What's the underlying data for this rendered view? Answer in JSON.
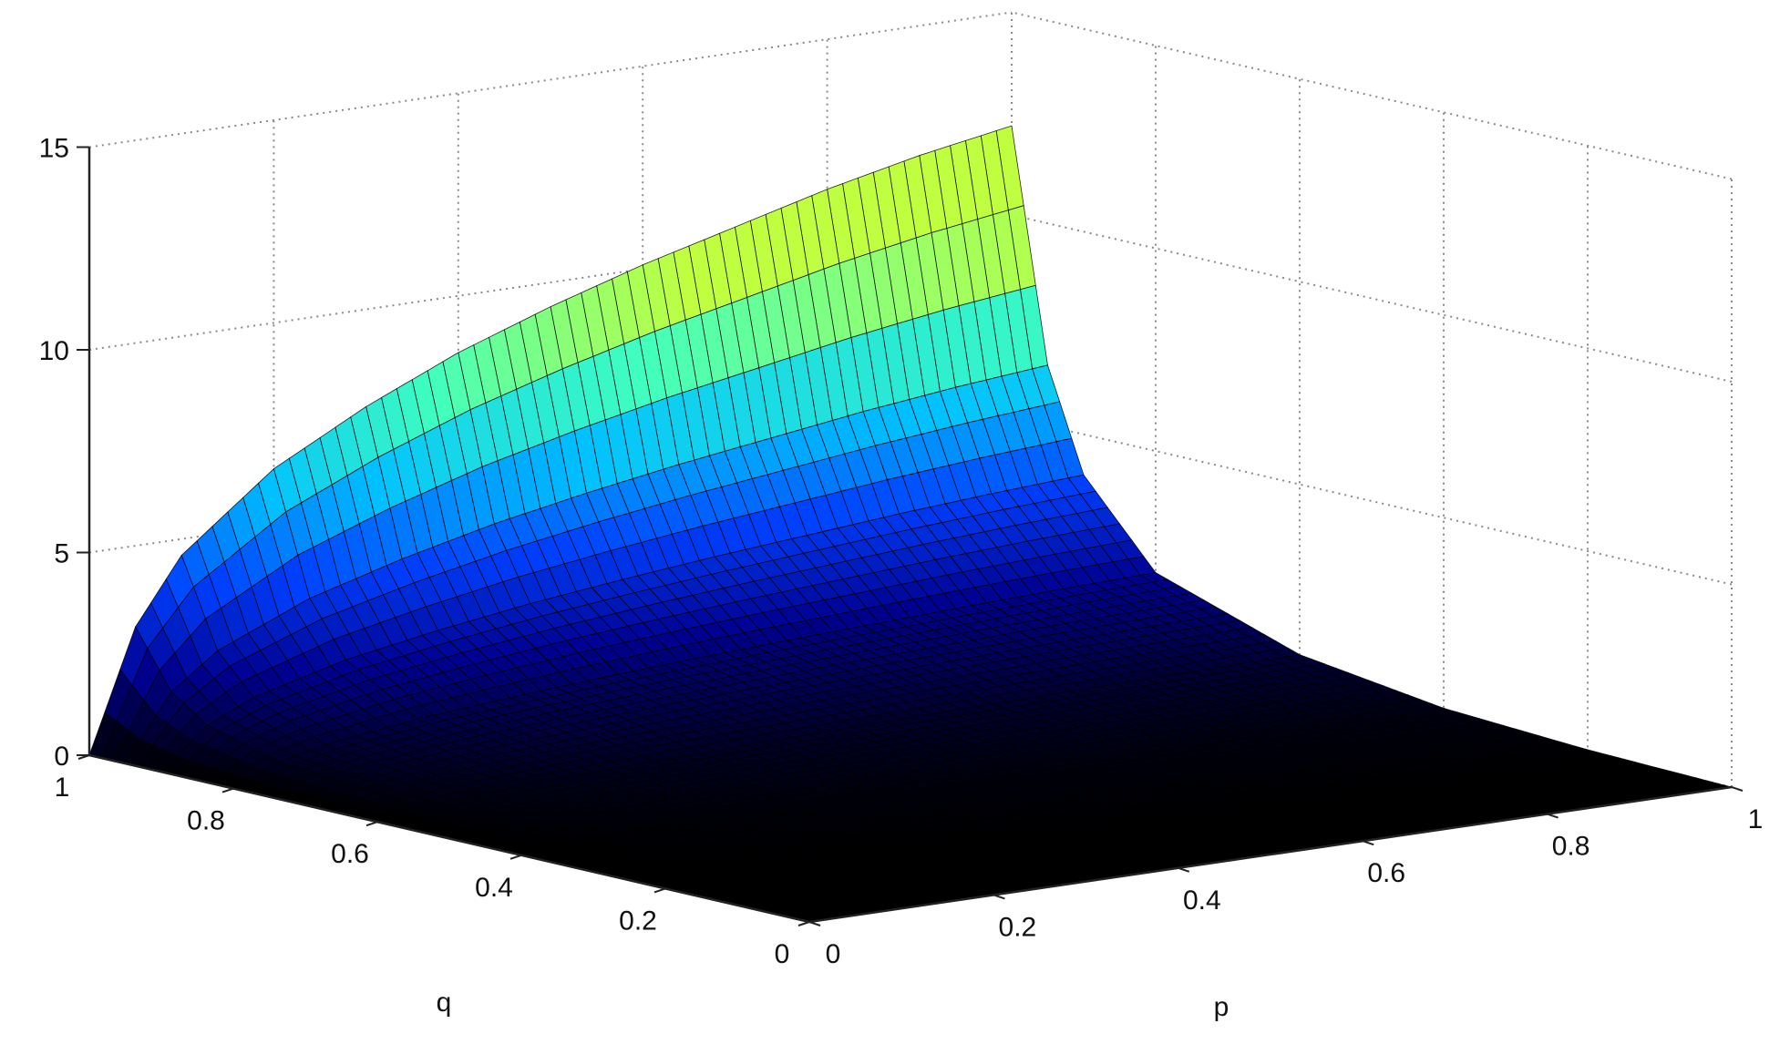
{
  "chart_data": {
    "type": "surface3d",
    "title": "",
    "xlabel": "p",
    "ylabel": "q",
    "zlabel": "",
    "xlim": [
      0,
      1
    ],
    "ylim": [
      0,
      1
    ],
    "zlim": [
      0,
      15
    ],
    "x_ticks": [
      "0",
      "0.2",
      "0.4",
      "0.6",
      "0.8",
      "1"
    ],
    "y_ticks": [
      "0",
      "0.2",
      "0.4",
      "0.6",
      "0.8",
      "1"
    ],
    "z_ticks": [
      "0",
      "5",
      "10",
      "15"
    ],
    "grid": true,
    "colormap": [
      "#000000",
      "#00008f",
      "#0040ff",
      "#00c0ff",
      "#40ffbf",
      "#c0ff40"
    ],
    "surface": {
      "description_of_values": "z = f(p, q) >= 0; z ≈ 0 over most of the domain, rising steeply toward q = 1 and toward p = 1",
      "ridge_at_q_1": [
        {
          "p": 0.0,
          "z": 0.0
        },
        {
          "p": 0.05,
          "z": 3.0
        },
        {
          "p": 0.1,
          "z": 4.6
        },
        {
          "p": 0.2,
          "z": 6.4
        },
        {
          "p": 0.3,
          "z": 7.6
        },
        {
          "p": 0.4,
          "z": 8.6
        },
        {
          "p": 0.5,
          "z": 9.4
        },
        {
          "p": 0.6,
          "z": 10.1
        },
        {
          "p": 0.7,
          "z": 10.7
        },
        {
          "p": 0.8,
          "z": 11.3
        },
        {
          "p": 0.9,
          "z": 11.8
        },
        {
          "p": 1.0,
          "z": 12.2
        }
      ],
      "edge_at_p_1": [
        {
          "q": 0.0,
          "z": 0.0
        },
        {
          "q": 0.2,
          "z": 0.1
        },
        {
          "q": 0.4,
          "z": 0.3
        },
        {
          "q": 0.6,
          "z": 0.8
        },
        {
          "q": 0.8,
          "z": 2.0
        },
        {
          "q": 0.9,
          "z": 4.0
        },
        {
          "q": 0.95,
          "z": 6.5
        },
        {
          "q": 1.0,
          "z": 12.2
        }
      ]
    }
  }
}
